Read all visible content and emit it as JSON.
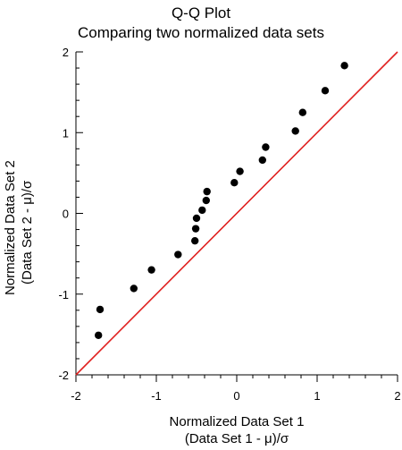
{
  "chart_data": {
    "type": "scatter",
    "title": "Q-Q Plot",
    "subtitle": "Comparing two normalized data sets",
    "xlabel": [
      "Normalized Data Set 1",
      "(Data Set 1 - μ)/σ"
    ],
    "ylabel": [
      "Normalized Data Set 2",
      "(Data Set 2 - μ)/σ"
    ],
    "xlim": [
      -2,
      2
    ],
    "ylim": [
      -2,
      2
    ],
    "xticks": [
      "-2",
      "-1",
      "0",
      "1",
      "2"
    ],
    "yticks": [
      "-2",
      "-1",
      "0",
      "1",
      "2"
    ],
    "grid": false,
    "reference_line": {
      "from": [
        -2,
        -2
      ],
      "to": [
        2,
        2
      ],
      "color": "#e0201f"
    },
    "point_color": "#000000",
    "points": [
      [
        -1.72,
        -1.51
      ],
      [
        -1.7,
        -1.19
      ],
      [
        -1.28,
        -0.93
      ],
      [
        -1.06,
        -0.7
      ],
      [
        -0.73,
        -0.51
      ],
      [
        -0.52,
        -0.34
      ],
      [
        -0.51,
        -0.19
      ],
      [
        -0.5,
        -0.06
      ],
      [
        -0.43,
        0.04
      ],
      [
        -0.38,
        0.16
      ],
      [
        -0.37,
        0.27
      ],
      [
        -0.03,
        0.38
      ],
      [
        0.04,
        0.52
      ],
      [
        0.32,
        0.66
      ],
      [
        0.36,
        0.82
      ],
      [
        0.73,
        1.02
      ],
      [
        0.82,
        1.25
      ],
      [
        1.1,
        1.52
      ],
      [
        1.34,
        1.83
      ]
    ]
  }
}
